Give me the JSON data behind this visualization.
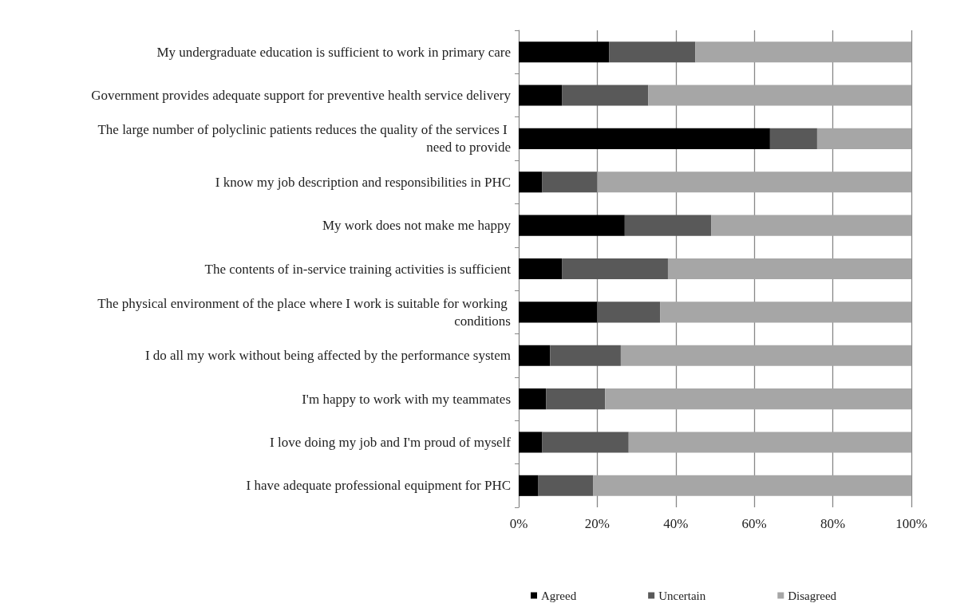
{
  "chart_data": {
    "type": "bar",
    "orientation": "horizontal",
    "stacked": true,
    "categories": [
      "My undergraduate education is sufficient to work in primary care",
      "Government provides adequate support for preventive health service delivery",
      "The large number of polyclinic patients reduces the quality of the services I need to provide",
      "I know my job description and responsibilities in PHC",
      "My work does not make me happy",
      "The contents of in-service training activities is sufficient",
      "The physical environment of the place where I work is suitable for working conditions",
      "I do all my work without being affected by the performance system",
      "I'm happy to work with my teammates",
      "I love doing my job and I'm proud of myself",
      "I have adequate professional equipment for PHC"
    ],
    "series": [
      {
        "name": "Agreed",
        "color": "#000000",
        "values": [
          23,
          11,
          64,
          6,
          27,
          11,
          20,
          8,
          7,
          6,
          5
        ]
      },
      {
        "name": "Uncertain",
        "color": "#595959",
        "values": [
          22,
          22,
          12,
          14,
          22,
          27,
          16,
          18,
          15,
          22,
          14
        ]
      },
      {
        "name": "Disagreed",
        "color": "#a6a6a6",
        "values": [
          55,
          67,
          24,
          80,
          51,
          62,
          64,
          74,
          78,
          72,
          81
        ]
      }
    ],
    "xlim": [
      0,
      100
    ],
    "xticks": [
      {
        "value": 0,
        "label": "0%"
      },
      {
        "value": 20,
        "label": "20%"
      },
      {
        "value": 40,
        "label": "40%"
      },
      {
        "value": 60,
        "label": "60%"
      },
      {
        "value": 80,
        "label": "80%"
      },
      {
        "value": 100,
        "label": "100%"
      }
    ],
    "grid": "x",
    "legend": "bottom"
  }
}
